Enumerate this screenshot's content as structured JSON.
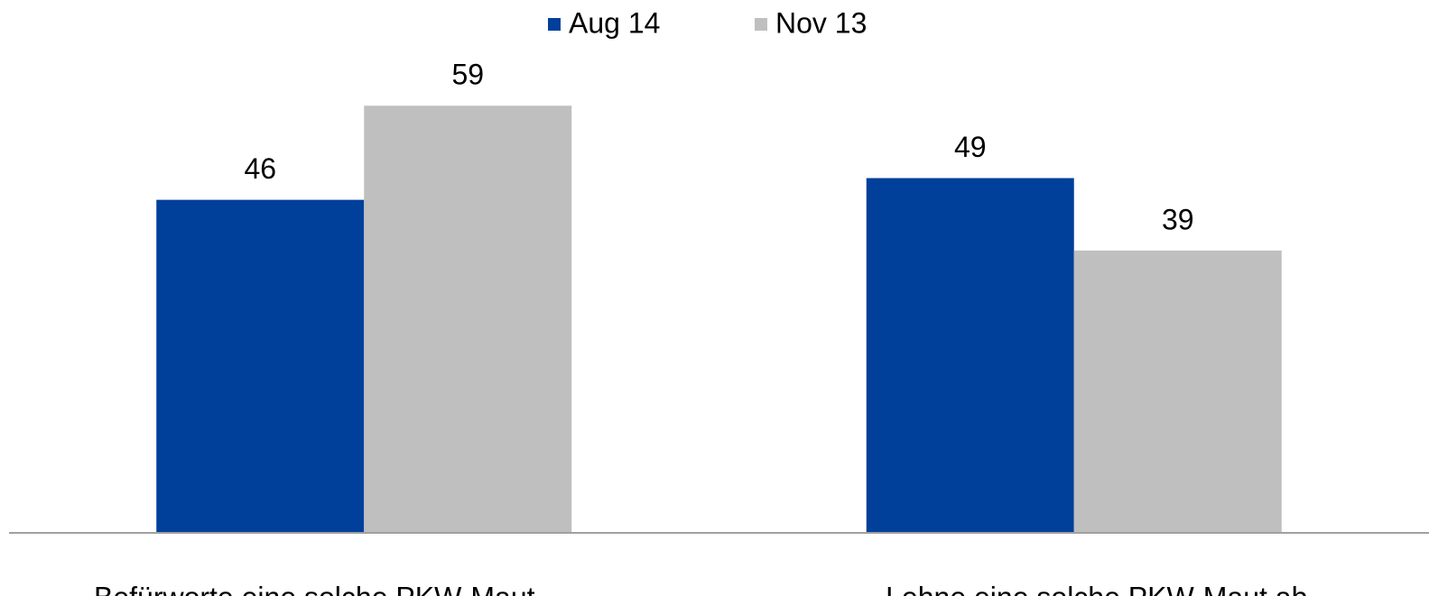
{
  "chart_data": {
    "type": "bar",
    "categories": [
      "Befürworte eine solche PKW-Maut",
      "Lehne eine solche PKW-Maut ab"
    ],
    "series": [
      {
        "name": "Aug 14",
        "color": "#003f9a",
        "values": [
          46,
          49
        ]
      },
      {
        "name": "Nov 13",
        "color": "#bfbfbf",
        "values": [
          59,
          39
        ]
      }
    ],
    "ylim": [
      0,
      70
    ],
    "grid": false,
    "legend": "top"
  }
}
